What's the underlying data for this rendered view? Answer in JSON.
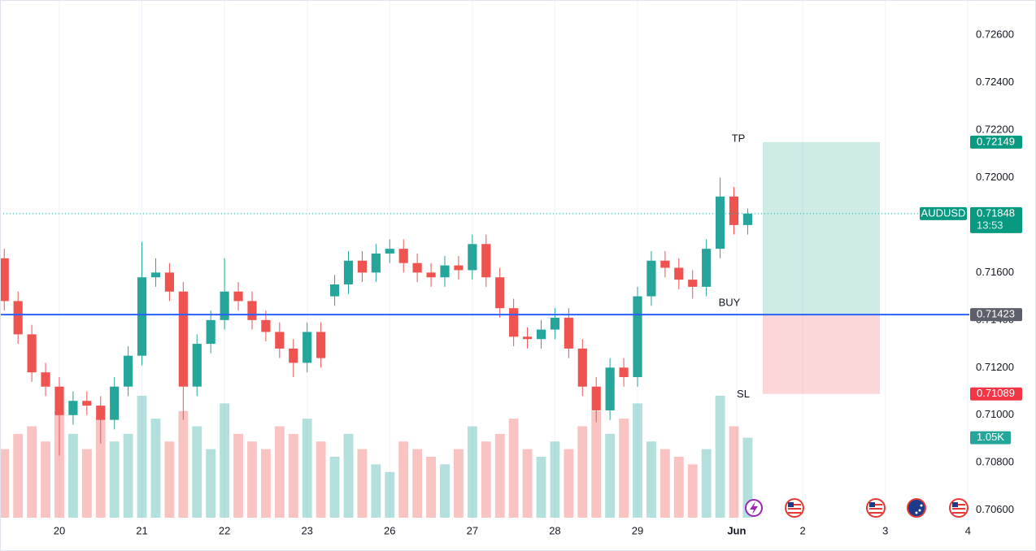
{
  "chart_data": {
    "type": "candlestick",
    "symbol": "AUDUSD",
    "countdown": "13:53",
    "x": [
      0,
      1,
      2,
      3,
      4,
      5,
      6,
      7,
      8,
      9,
      10,
      11,
      12,
      13,
      14,
      15,
      16,
      17,
      18,
      19,
      20,
      21,
      22,
      23,
      24,
      25,
      26,
      27,
      28,
      29,
      30,
      31,
      32,
      33,
      34,
      35,
      36,
      37,
      38,
      39,
      40,
      41,
      42,
      43,
      44,
      45,
      46,
      47,
      48,
      49,
      50,
      51,
      52,
      53,
      54
    ],
    "open": [
      0.7166,
      0.7148,
      0.7134,
      0.7118,
      0.7112,
      0.71,
      0.7106,
      0.7104,
      0.7098,
      0.7112,
      0.7125,
      0.7158,
      0.716,
      0.7152,
      0.7112,
      0.713,
      0.714,
      0.7152,
      0.7148,
      0.714,
      0.7135,
      0.7128,
      0.7122,
      0.7135,
      0.715,
      0.7155,
      0.7165,
      0.716,
      0.7168,
      0.717,
      0.7164,
      0.716,
      0.7158,
      0.7163,
      0.7161,
      0.7172,
      0.7158,
      0.7145,
      0.7133,
      0.7132,
      0.7136,
      0.7141,
      0.7128,
      0.7112,
      0.7102,
      0.712,
      0.7116,
      0.715,
      0.7165,
      0.7162,
      0.7157,
      0.7154,
      0.717,
      0.7192,
      0.718
    ],
    "high": [
      0.717,
      0.7152,
      0.7138,
      0.7122,
      0.7116,
      0.711,
      0.711,
      0.7108,
      0.7116,
      0.7129,
      0.7173,
      0.7166,
      0.7164,
      0.7156,
      0.7134,
      0.7144,
      0.7166,
      0.7156,
      0.7152,
      0.7144,
      0.7139,
      0.7132,
      0.7139,
      0.7139,
      0.7159,
      0.7169,
      0.7169,
      0.7172,
      0.7174,
      0.7174,
      0.7168,
      0.7164,
      0.7167,
      0.7167,
      0.7176,
      0.7176,
      0.7162,
      0.7149,
      0.7137,
      0.714,
      0.7145,
      0.7145,
      0.7132,
      0.7116,
      0.7124,
      0.7124,
      0.7154,
      0.7169,
      0.7169,
      0.7166,
      0.7161,
      0.7174,
      0.72,
      0.7196,
      0.7187
    ],
    "low": [
      0.7144,
      0.713,
      0.7114,
      0.7108,
      0.7083,
      0.7096,
      0.71,
      0.7088,
      0.7094,
      0.7108,
      0.7121,
      0.7154,
      0.7148,
      0.7098,
      0.7108,
      0.7126,
      0.7136,
      0.7144,
      0.7136,
      0.7131,
      0.7124,
      0.7116,
      0.7118,
      0.712,
      0.7146,
      0.7151,
      0.7156,
      0.7156,
      0.7164,
      0.716,
      0.7156,
      0.7154,
      0.7154,
      0.7157,
      0.7157,
      0.7154,
      0.7141,
      0.7129,
      0.7128,
      0.7128,
      0.7132,
      0.7124,
      0.7108,
      0.7097,
      0.7098,
      0.7112,
      0.7112,
      0.7146,
      0.7158,
      0.7153,
      0.7149,
      0.715,
      0.7166,
      0.7176,
      0.7176
    ],
    "close": [
      0.7148,
      0.7134,
      0.7118,
      0.7112,
      0.71,
      0.7106,
      0.7104,
      0.7098,
      0.7112,
      0.7125,
      0.7158,
      0.716,
      0.7152,
      0.7112,
      0.713,
      0.714,
      0.7152,
      0.7148,
      0.714,
      0.7135,
      0.7128,
      0.7122,
      0.7135,
      0.7124,
      0.7155,
      0.7165,
      0.716,
      0.7168,
      0.717,
      0.7164,
      0.716,
      0.7158,
      0.7163,
      0.7161,
      0.7172,
      0.7158,
      0.7145,
      0.7133,
      0.7132,
      0.7136,
      0.7141,
      0.7128,
      0.7112,
      0.7102,
      0.712,
      0.7116,
      0.715,
      0.7165,
      0.7162,
      0.7157,
      0.7154,
      0.717,
      0.7192,
      0.718,
      0.71848
    ],
    "volume": [
      900,
      1100,
      1200,
      1000,
      1400,
      1100,
      900,
      1300,
      1000,
      1100,
      1600,
      1300,
      1000,
      1400,
      1200,
      900,
      1500,
      1100,
      1000,
      900,
      1200,
      1100,
      1300,
      1000,
      800,
      1100,
      900,
      700,
      600,
      1000,
      900,
      800,
      700,
      900,
      1200,
      1000,
      1100,
      1300,
      900,
      800,
      1000,
      900,
      1200,
      1400,
      1100,
      1300,
      1500,
      1000,
      900,
      800,
      700,
      900,
      1600,
      1200,
      1050
    ],
    "volume_label": "1.05K",
    "up_color": "#26a69a",
    "down_color": "#ef5350",
    "xlim": [
      -0.31,
      70.1
    ],
    "xticks": [
      {
        "value": 4,
        "label": "20"
      },
      {
        "value": 10,
        "label": "21"
      },
      {
        "value": 16,
        "label": "22"
      },
      {
        "value": 22,
        "label": "23"
      },
      {
        "value": 28,
        "label": "26"
      },
      {
        "value": 34,
        "label": "27"
      },
      {
        "value": 40,
        "label": "28"
      },
      {
        "value": 46,
        "label": "29"
      },
      {
        "value": 53.2,
        "label": "Jun"
      },
      {
        "value": 58,
        "label": "2"
      },
      {
        "value": 64,
        "label": "3"
      },
      {
        "value": 70,
        "label": "4"
      }
    ],
    "ylim": [
      0.70541,
      0.72747
    ],
    "yticks": [
      {
        "value": 0.706,
        "label": "0.70600"
      },
      {
        "value": 0.708,
        "label": "0.70800"
      },
      {
        "value": 0.71,
        "label": "0.71000"
      },
      {
        "value": 0.712,
        "label": "0.71200"
      },
      {
        "value": 0.714,
        "label": "0.71400"
      },
      {
        "value": 0.716,
        "label": "0.71600"
      },
      {
        "value": 0.718,
        "label": "0.71800"
      },
      {
        "value": 0.72,
        "label": "0.72000"
      },
      {
        "value": 0.722,
        "label": "0.72200"
      },
      {
        "value": 0.724,
        "label": "0.72400"
      },
      {
        "value": 0.726,
        "label": "0.72600"
      }
    ],
    "grid": true,
    "last_price": {
      "value": 0.71848,
      "label": "0.71848"
    },
    "position": {
      "take_profit": {
        "value": 0.72149,
        "label": "0.72149"
      },
      "entry": {
        "value": 0.71423,
        "label": "0.71423"
      },
      "stop_loss": {
        "value": 0.71089,
        "label": "0.71089"
      },
      "tp_text": "TP",
      "entry_text": "BUY",
      "sl_text": "SL"
    }
  }
}
